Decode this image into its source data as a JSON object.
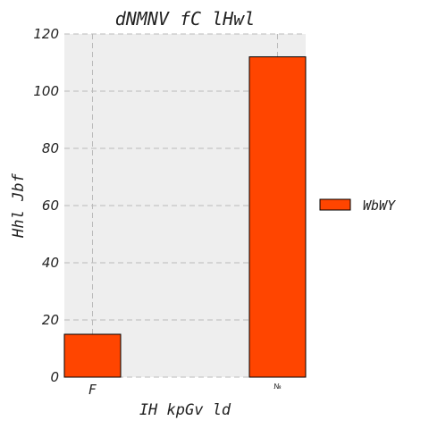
{
  "chart_data": {
    "type": "bar",
    "title": "dNMNV fC lHwl",
    "xlabel": "IH kpGv  ld",
    "ylabel": "Hhl Jbf",
    "categories": [
      "F",
      "№"
    ],
    "series": [
      {
        "name": "WbWY",
        "values": [
          15,
          112
        ],
        "color": "#ff4500"
      }
    ],
    "ylim": [
      0,
      120
    ],
    "yticks": [
      "0",
      "20",
      "40",
      "60",
      "80",
      "100",
      "120"
    ],
    "grid": true,
    "legend_position": "right",
    "plot_background": "#eeeeee",
    "grid_color": "#bbbbbb"
  }
}
